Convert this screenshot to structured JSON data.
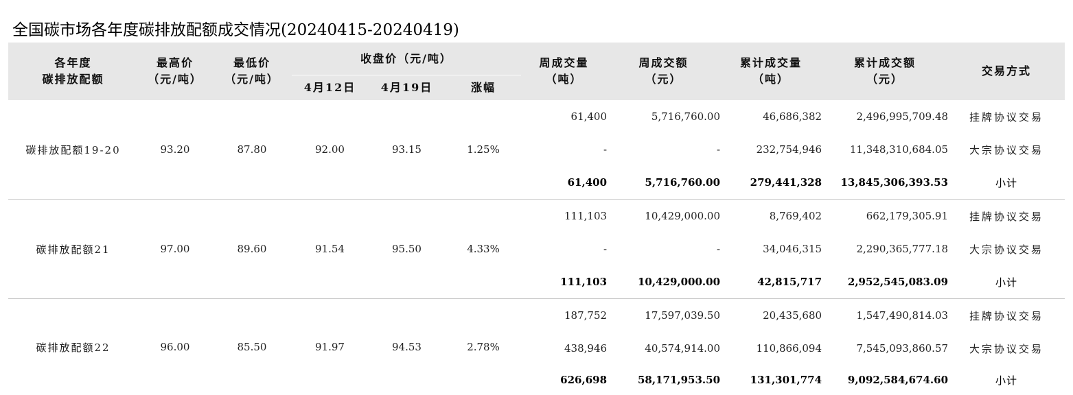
{
  "title": "全国碳市场各年度碳排放配额成交情况(20240415-20240419)",
  "headers": {
    "allowance_line1": "各年度",
    "allowance_line2": "碳排放配额",
    "high_line1": "最高价",
    "high_line2": "（元/吨）",
    "low_line1": "最低价",
    "low_line2": "（元/吨）",
    "close_group": "收盘价（元/吨）",
    "close_prev": "4月12日",
    "close_curr": "4月19日",
    "change": "涨幅",
    "week_vol_line1": "周成交量",
    "week_vol_line2": "（吨）",
    "week_amt_line1": "周成交额",
    "week_amt_line2": "（元）",
    "cum_vol_line1": "累计成交量",
    "cum_vol_line2": "（吨）",
    "cum_amt_line1": "累计成交额",
    "cum_amt_line2": "（元）",
    "method": "交易方式"
  },
  "groups": [
    {
      "name": "碳排放配额19-20",
      "high": "93.20",
      "low": "87.80",
      "close_prev": "92.00",
      "close_curr": "93.15",
      "change": "1.25%",
      "rows": [
        {
          "week_vol": "61,400",
          "week_amt": "5,716,760.00",
          "cum_vol": "46,686,382",
          "cum_amt": "2,496,995,709.48",
          "method": "挂牌协议交易"
        },
        {
          "week_vol": "-",
          "week_amt": "-",
          "cum_vol": "232,754,946",
          "cum_amt": "11,348,310,684.05",
          "method": "大宗协议交易"
        },
        {
          "week_vol": "61,400",
          "week_amt": "5,716,760.00",
          "cum_vol": "279,441,328",
          "cum_amt": "13,845,306,393.53",
          "method": "小计"
        }
      ]
    },
    {
      "name": "碳排放配额21",
      "high": "97.00",
      "low": "89.60",
      "close_prev": "91.54",
      "close_curr": "95.50",
      "change": "4.33%",
      "rows": [
        {
          "week_vol": "111,103",
          "week_amt": "10,429,000.00",
          "cum_vol": "8,769,402",
          "cum_amt": "662,179,305.91",
          "method": "挂牌协议交易"
        },
        {
          "week_vol": "-",
          "week_amt": "-",
          "cum_vol": "34,046,315",
          "cum_amt": "2,290,365,777.18",
          "method": "大宗协议交易"
        },
        {
          "week_vol": "111,103",
          "week_amt": "10,429,000.00",
          "cum_vol": "42,815,717",
          "cum_amt": "2,952,545,083.09",
          "method": "小计"
        }
      ]
    },
    {
      "name": "碳排放配额22",
      "high": "96.00",
      "low": "85.50",
      "close_prev": "91.97",
      "close_curr": "94.53",
      "change": "2.78%",
      "rows": [
        {
          "week_vol": "187,752",
          "week_amt": "17,597,039.50",
          "cum_vol": "20,435,680",
          "cum_amt": "1,547,490,814.03",
          "method": "挂牌协议交易"
        },
        {
          "week_vol": "438,946",
          "week_amt": "40,574,914.00",
          "cum_vol": "110,866,094",
          "cum_amt": "7,545,093,860.57",
          "method": "大宗协议交易"
        },
        {
          "week_vol": "626,698",
          "week_amt": "58,171,953.50",
          "cum_vol": "131,301,774",
          "cum_amt": "9,092,584,674.60",
          "method": "小计"
        }
      ]
    }
  ]
}
